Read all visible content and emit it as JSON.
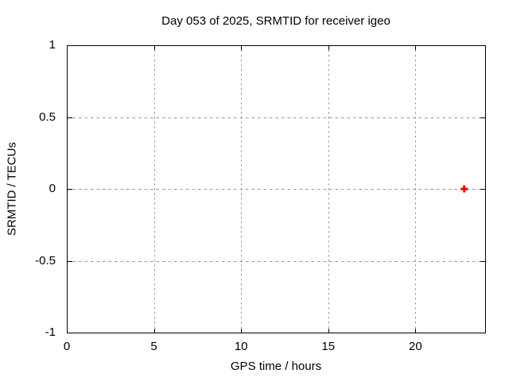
{
  "window": {
    "background": "#ffffff"
  },
  "chart_data": {
    "type": "scatter",
    "title": "Day 053 of 2025, SRMTID for receiver igeo",
    "xlabel": "GPS time / hours",
    "ylabel": "SRMTID / TECUs",
    "xlim": [
      0,
      24
    ],
    "ylim": [
      -1,
      1
    ],
    "xticks": [
      0,
      5,
      10,
      15,
      20
    ],
    "yticks": [
      -1,
      -0.5,
      0,
      0.5,
      1
    ],
    "grid": true,
    "grid_style": "dashed",
    "legend": "none",
    "series": [
      {
        "name": "SRMTID",
        "marker": "plus",
        "color": "#ff0000",
        "points": [
          {
            "x": 22.8,
            "y": 0.0
          }
        ]
      }
    ]
  },
  "colors": {
    "background": "#ffffff",
    "axis": "#000000",
    "grid": "#989898",
    "text": "#000000",
    "marker": "#ff0000"
  }
}
